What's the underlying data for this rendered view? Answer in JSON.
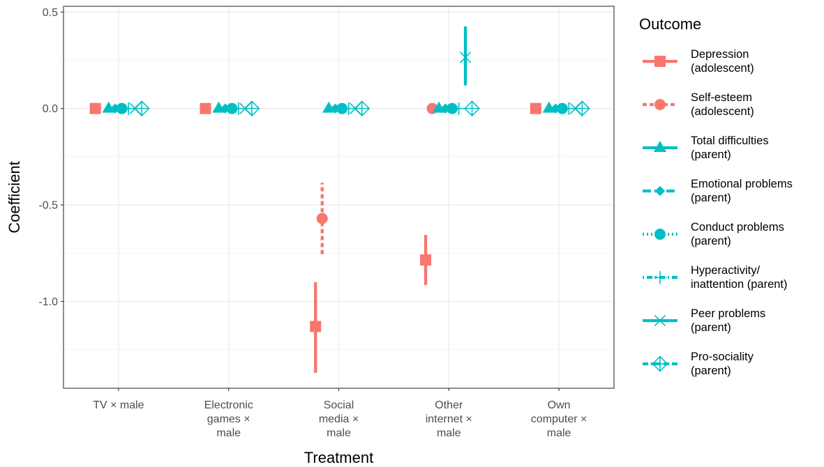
{
  "chart_data": {
    "type": "scatter",
    "xlabel": "Treatment",
    "ylabel": "Coefficient",
    "ylim": [
      -1.45,
      0.53
    ],
    "yticks": [
      0.5,
      0.0,
      -0.5,
      -1.0
    ],
    "ytick_labels": [
      "0.5",
      "0.0",
      "-0.5",
      "-1.0"
    ],
    "grid": true,
    "legend_title": "Outcome",
    "legend_position": "right",
    "categories": [
      [
        "TV × male"
      ],
      [
        "Electronic",
        "games ×",
        "male"
      ],
      [
        "Social",
        "media ×",
        "male"
      ],
      [
        "Other",
        "internet ×",
        "male"
      ],
      [
        "Own",
        "computer ×",
        "male"
      ]
    ],
    "series": [
      {
        "name": [
          "Depression",
          "(adolescent)"
        ],
        "color": "#F8766D",
        "shape": "square",
        "line": "solid",
        "points": [
          {
            "cat": 0,
            "y": 0.0,
            "lo": 0.0,
            "hi": 0.0
          },
          {
            "cat": 1,
            "y": 0.0,
            "lo": 0.0,
            "hi": 0.0
          },
          {
            "cat": 2,
            "y": -1.13,
            "lo": -1.37,
            "hi": -0.9
          },
          {
            "cat": 3,
            "y": -0.785,
            "lo": -0.915,
            "hi": -0.655
          },
          {
            "cat": 4,
            "y": 0.0,
            "lo": 0.0,
            "hi": 0.0
          }
        ]
      },
      {
        "name": [
          "Self-esteem",
          "(adolescent)"
        ],
        "color": "#F8766D",
        "shape": "circle",
        "line": "dashed",
        "points": [
          {
            "cat": 2,
            "y": -0.57,
            "lo": -0.755,
            "hi": -0.385
          },
          {
            "cat": 3,
            "y": 0.0,
            "lo": 0.0,
            "hi": 0.0
          }
        ]
      },
      {
        "name": [
          "Total difficulties",
          "(parent)"
        ],
        "color": "#00BFC4",
        "shape": "triangle",
        "line": "solid",
        "points": [
          {
            "cat": 0,
            "y": 0.0,
            "lo": 0.0,
            "hi": 0.0
          },
          {
            "cat": 1,
            "y": 0.0,
            "lo": 0.0,
            "hi": 0.0
          },
          {
            "cat": 2,
            "y": 0.0,
            "lo": 0.0,
            "hi": 0.0
          },
          {
            "cat": 3,
            "y": 0.0,
            "lo": 0.0,
            "hi": 0.0
          },
          {
            "cat": 4,
            "y": 0.0,
            "lo": 0.0,
            "hi": 0.0
          }
        ]
      },
      {
        "name": [
          "Emotional problems",
          "(parent)"
        ],
        "color": "#00BFC4",
        "shape": "diamond",
        "line": "longdash",
        "points": [
          {
            "cat": 0,
            "y": 0.0,
            "lo": 0.0,
            "hi": 0.0
          },
          {
            "cat": 1,
            "y": 0.0,
            "lo": 0.0,
            "hi": 0.0
          },
          {
            "cat": 2,
            "y": 0.0,
            "lo": 0.0,
            "hi": 0.0
          },
          {
            "cat": 3,
            "y": 0.0,
            "lo": 0.0,
            "hi": 0.0
          },
          {
            "cat": 4,
            "y": 0.0,
            "lo": 0.0,
            "hi": 0.0
          }
        ]
      },
      {
        "name": [
          "Conduct problems",
          "(parent)"
        ],
        "color": "#00BFC4",
        "shape": "circle",
        "line": "dotted",
        "points": [
          {
            "cat": 0,
            "y": 0.0,
            "lo": 0.0,
            "hi": 0.0
          },
          {
            "cat": 1,
            "y": 0.0,
            "lo": 0.0,
            "hi": 0.0
          },
          {
            "cat": 2,
            "y": 0.0,
            "lo": 0.0,
            "hi": 0.0
          },
          {
            "cat": 3,
            "y": 0.0,
            "lo": 0.0,
            "hi": 0.0
          },
          {
            "cat": 4,
            "y": 0.0,
            "lo": 0.0,
            "hi": 0.0
          }
        ]
      },
      {
        "name": [
          "Hyperactivity/",
          "inattention (parent)"
        ],
        "color": "#00BFC4",
        "shape": "plus",
        "line": "dotdash",
        "points": [
          {
            "cat": 0,
            "y": 0.0,
            "lo": 0.0,
            "hi": 0.0
          },
          {
            "cat": 1,
            "y": 0.0,
            "lo": 0.0,
            "hi": 0.0
          },
          {
            "cat": 2,
            "y": 0.0,
            "lo": 0.0,
            "hi": 0.0
          },
          {
            "cat": 3,
            "y": 0.0,
            "lo": 0.0,
            "hi": 0.0
          },
          {
            "cat": 4,
            "y": 0.0,
            "lo": 0.0,
            "hi": 0.0
          }
        ]
      },
      {
        "name": [
          "Peer problems",
          "(parent)"
        ],
        "color": "#00BFC4",
        "shape": "cross",
        "line": "solid",
        "points": [
          {
            "cat": 0,
            "y": 0.0,
            "lo": 0.0,
            "hi": 0.0
          },
          {
            "cat": 1,
            "y": 0.0,
            "lo": 0.0,
            "hi": 0.0
          },
          {
            "cat": 2,
            "y": 0.0,
            "lo": 0.0,
            "hi": 0.0
          },
          {
            "cat": 3,
            "y": 0.265,
            "lo": 0.12,
            "hi": 0.425
          },
          {
            "cat": 4,
            "y": 0.0,
            "lo": 0.0,
            "hi": 0.0
          }
        ]
      },
      {
        "name": [
          "Pro-sociality",
          "(parent)"
        ],
        "color": "#00BFC4",
        "shape": "diamond-open",
        "line": "twodash",
        "points": [
          {
            "cat": 0,
            "y": 0.0,
            "lo": 0.0,
            "hi": 0.0
          },
          {
            "cat": 1,
            "y": 0.0,
            "lo": 0.0,
            "hi": 0.0
          },
          {
            "cat": 2,
            "y": 0.0,
            "lo": 0.0,
            "hi": 0.0
          },
          {
            "cat": 3,
            "y": 0.0,
            "lo": 0.0,
            "hi": 0.0
          },
          {
            "cat": 4,
            "y": 0.0,
            "lo": 0.0,
            "hi": 0.0
          }
        ]
      }
    ]
  }
}
